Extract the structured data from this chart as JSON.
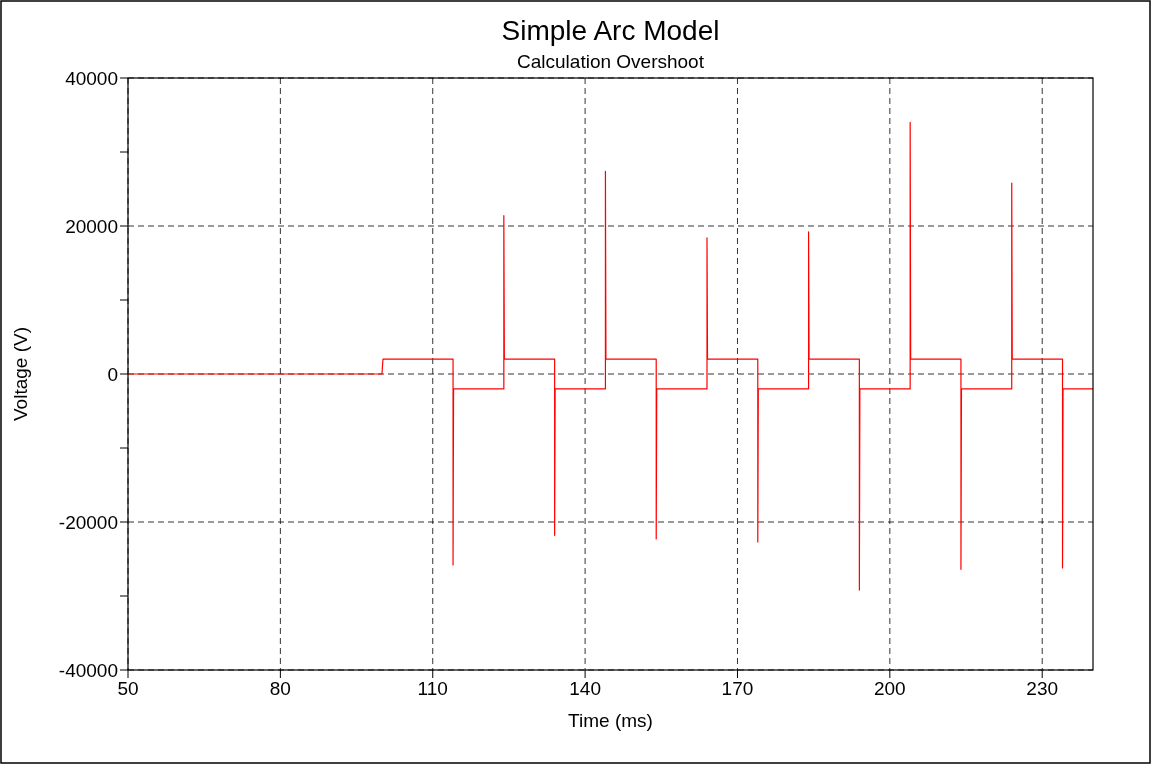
{
  "chart_data": {
    "type": "line",
    "title": "Simple Arc Model",
    "subtitle": "Calculation Overshoot",
    "xlabel": "Time (ms)",
    "ylabel": "Voltage (V)",
    "xlim": [
      50,
      240
    ],
    "xticks": [
      50,
      80,
      110,
      140,
      170,
      200,
      230
    ],
    "ylim": [
      -40000,
      40000
    ],
    "yticks": [
      -40000,
      {
        "value": -30000,
        "label": null
      },
      -20000,
      {
        "value": -10000,
        "label": null
      },
      0,
      {
        "value": 10000,
        "label": null
      },
      20000,
      {
        "value": 30000,
        "label": null
      },
      40000
    ],
    "grid": true,
    "line_style": "solid",
    "series": [
      {
        "color": "#ff0000",
        "x": [
          50,
          100,
          100.2,
          114,
          114,
          114.1,
          124,
          124,
          124.1,
          134,
          134,
          134.1,
          144,
          144,
          144.1,
          154,
          154,
          154.1,
          164,
          164,
          164.1,
          174,
          174,
          174.1,
          184,
          184,
          184.1,
          194,
          194,
          194.1,
          204,
          204,
          204.1,
          214,
          214,
          214.1,
          224,
          224,
          224.1,
          234,
          234,
          234.1,
          240
        ],
        "values": [
          0,
          0,
          2000,
          2000,
          -25800,
          -2000,
          -2000,
          21400,
          2000,
          2000,
          -21800,
          -2000,
          -2000,
          27400,
          2000,
          2000,
          -22300,
          -2000,
          -2000,
          18400,
          2000,
          2000,
          -22700,
          -2000,
          -2000,
          19200,
          2000,
          2000,
          -29200,
          -2000,
          -2000,
          34000,
          2000,
          2000,
          -26400,
          -2000,
          -2000,
          25800,
          2000,
          2000,
          -26200,
          -2000,
          -2000
        ]
      }
    ]
  }
}
